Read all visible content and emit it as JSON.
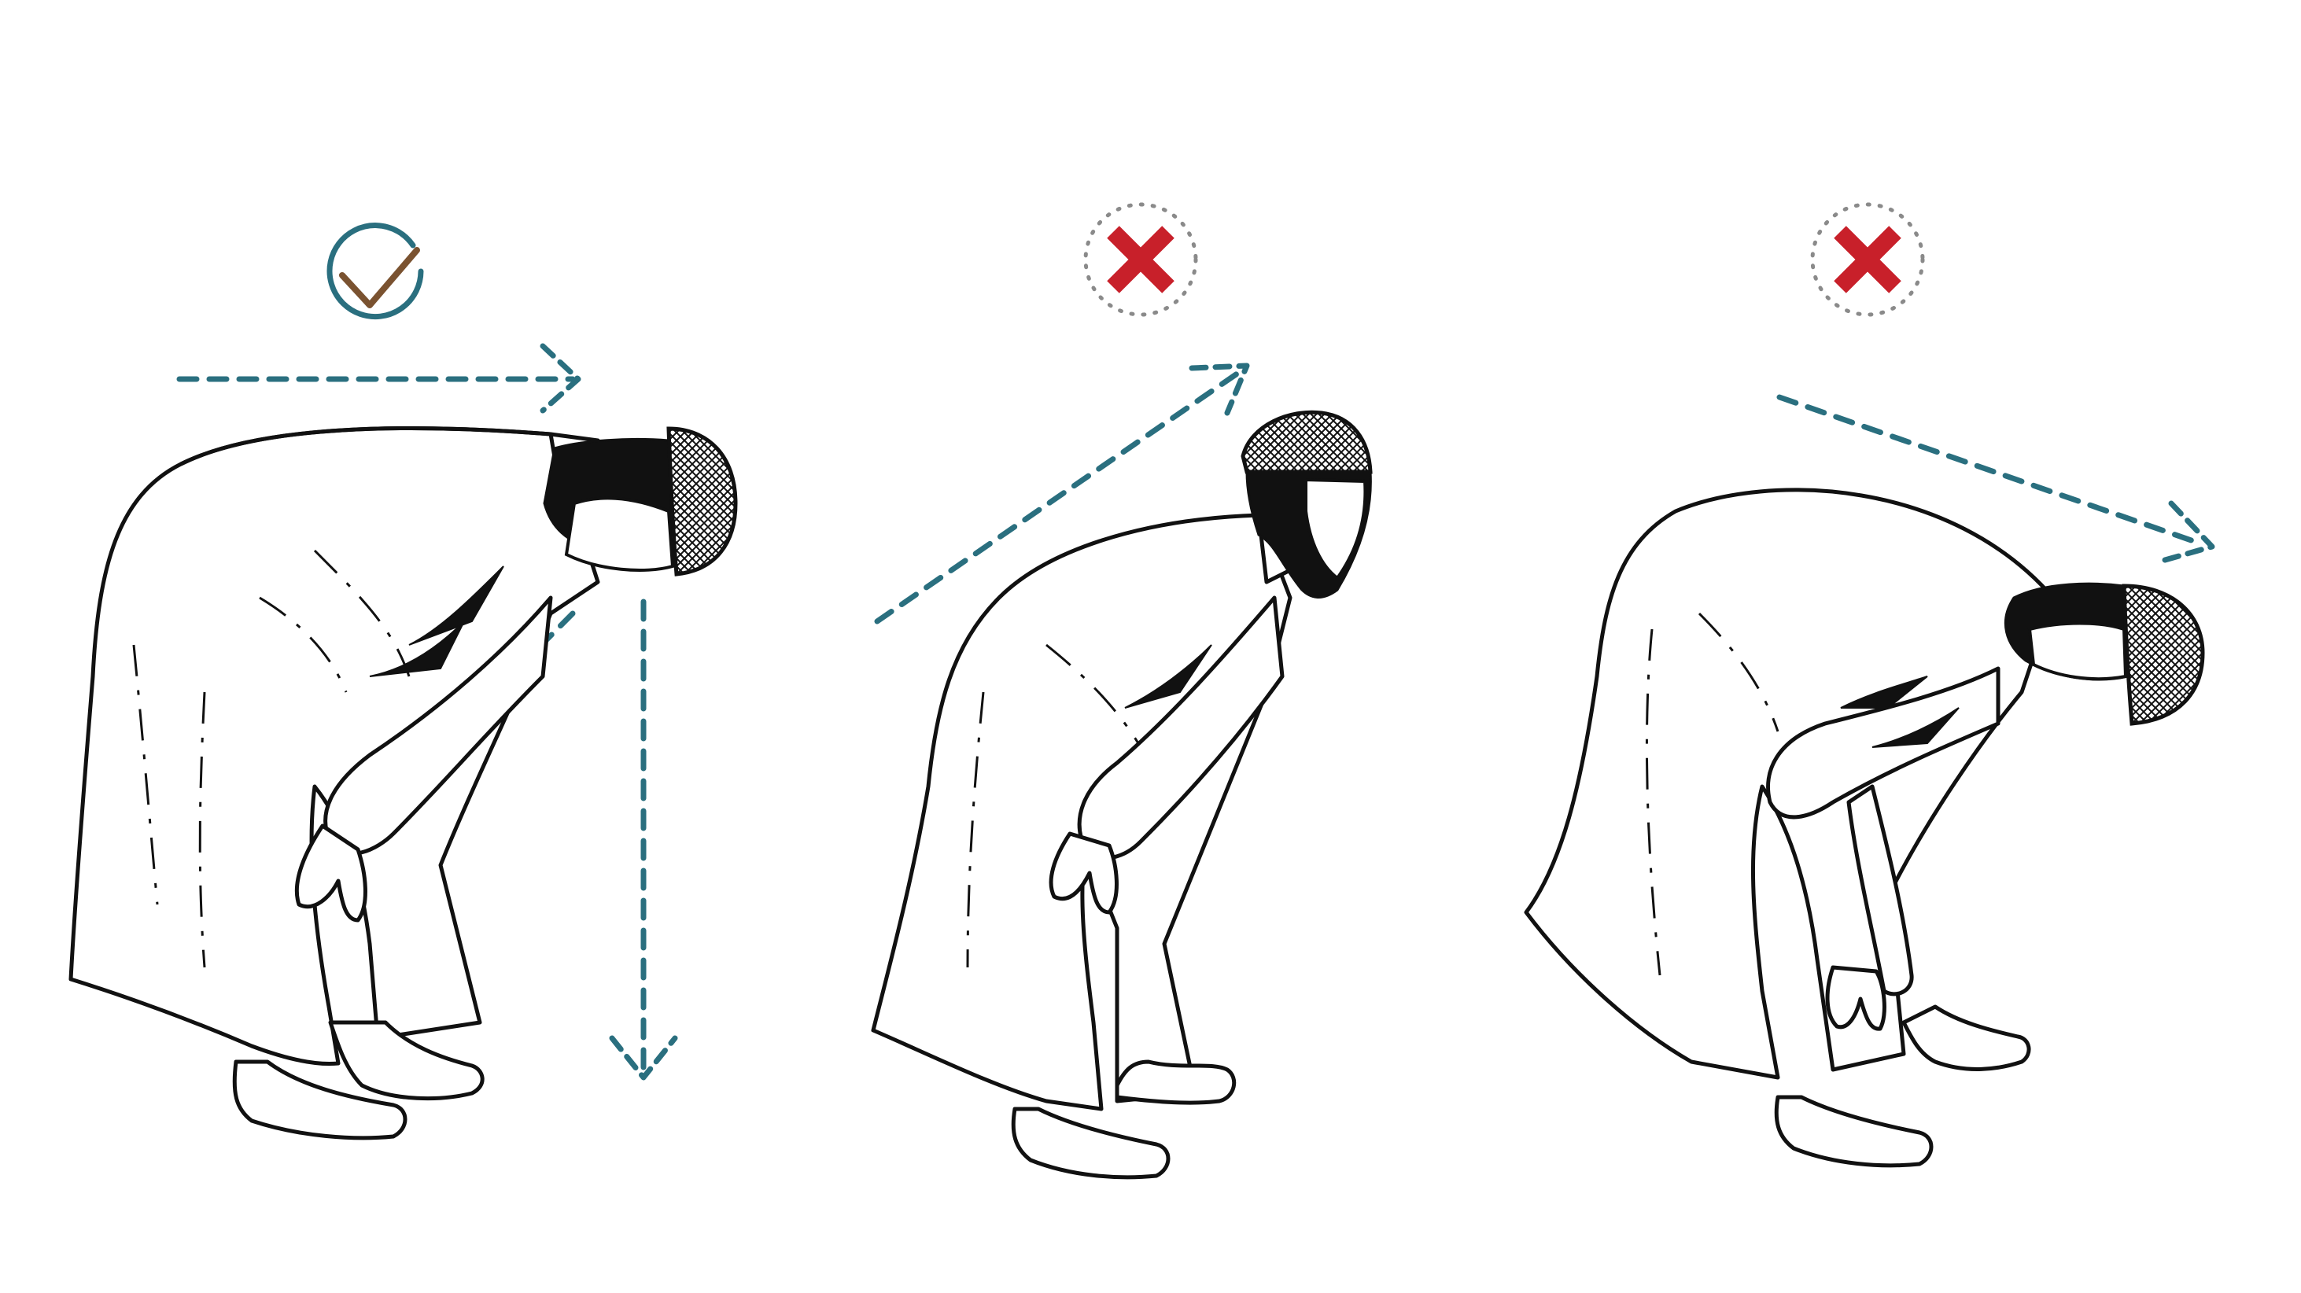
{
  "colors": {
    "background": "#ffffff",
    "ink": "#111111",
    "guide": "#2a6f7f",
    "correct_ring": "#2a6f7f",
    "correct_check": "#7a5230",
    "wrong_cross": "#c8202a",
    "wrong_ring": "#8a8a8a"
  },
  "panels": [
    {
      "id": "correct",
      "status": "correct",
      "status_icon": "check-circle-icon",
      "guide_lines": [
        "horizontal-back-arrow",
        "vertical-head-arrow",
        "diagonal-arm-line"
      ]
    },
    {
      "id": "wrong-head-up",
      "status": "incorrect",
      "status_icon": "cross-dotted-circle-icon",
      "guide_lines": [
        "rising-back-arrow"
      ]
    },
    {
      "id": "wrong-head-down",
      "status": "incorrect",
      "status_icon": "cross-dotted-circle-icon",
      "guide_lines": [
        "falling-back-arrow"
      ]
    }
  ]
}
